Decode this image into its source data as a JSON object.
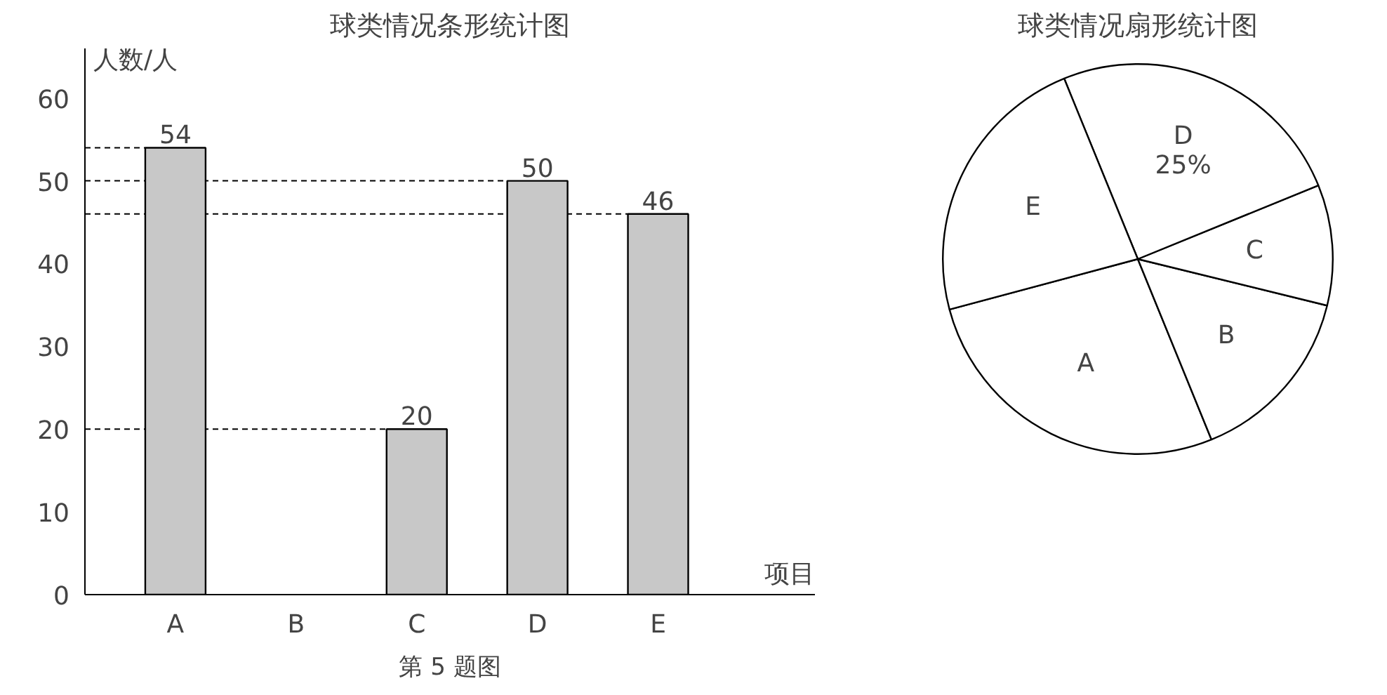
{
  "chart_data": [
    {
      "type": "bar",
      "title": "球类情况条形统计图",
      "xlabel": "项目",
      "ylabel": "人数/人",
      "categories": [
        "A",
        "B",
        "C",
        "D",
        "E"
      ],
      "values": [
        54,
        null,
        20,
        50,
        46
      ],
      "color": "#c8c8c8",
      "ylim": [
        0,
        66
      ],
      "yticks": [
        0,
        10,
        20,
        30,
        40,
        50,
        60
      ],
      "data_labels": true,
      "grid": false,
      "ref_lines": [
        {
          "axis": "y",
          "value": 54,
          "line_style": "dashed"
        },
        {
          "axis": "y",
          "value": 50,
          "line_style": "dashed"
        },
        {
          "axis": "y",
          "value": 46,
          "line_style": "dashed"
        },
        {
          "axis": "y",
          "value": 20,
          "line_style": "dashed"
        }
      ],
      "annotations": [
        "第 5 题图"
      ]
    },
    {
      "type": "pie",
      "title": "球类情况扇形统计图",
      "categories": [
        "A",
        "B",
        "C",
        "D",
        "E"
      ],
      "values": [
        27,
        15,
        10,
        25,
        23
      ],
      "colors": [
        "#ffffff",
        "#ffffff",
        "#ffffff",
        "#ffffff",
        "#ffffff"
      ],
      "value_labels": [
        null,
        null,
        null,
        "25%",
        null
      ]
    }
  ]
}
